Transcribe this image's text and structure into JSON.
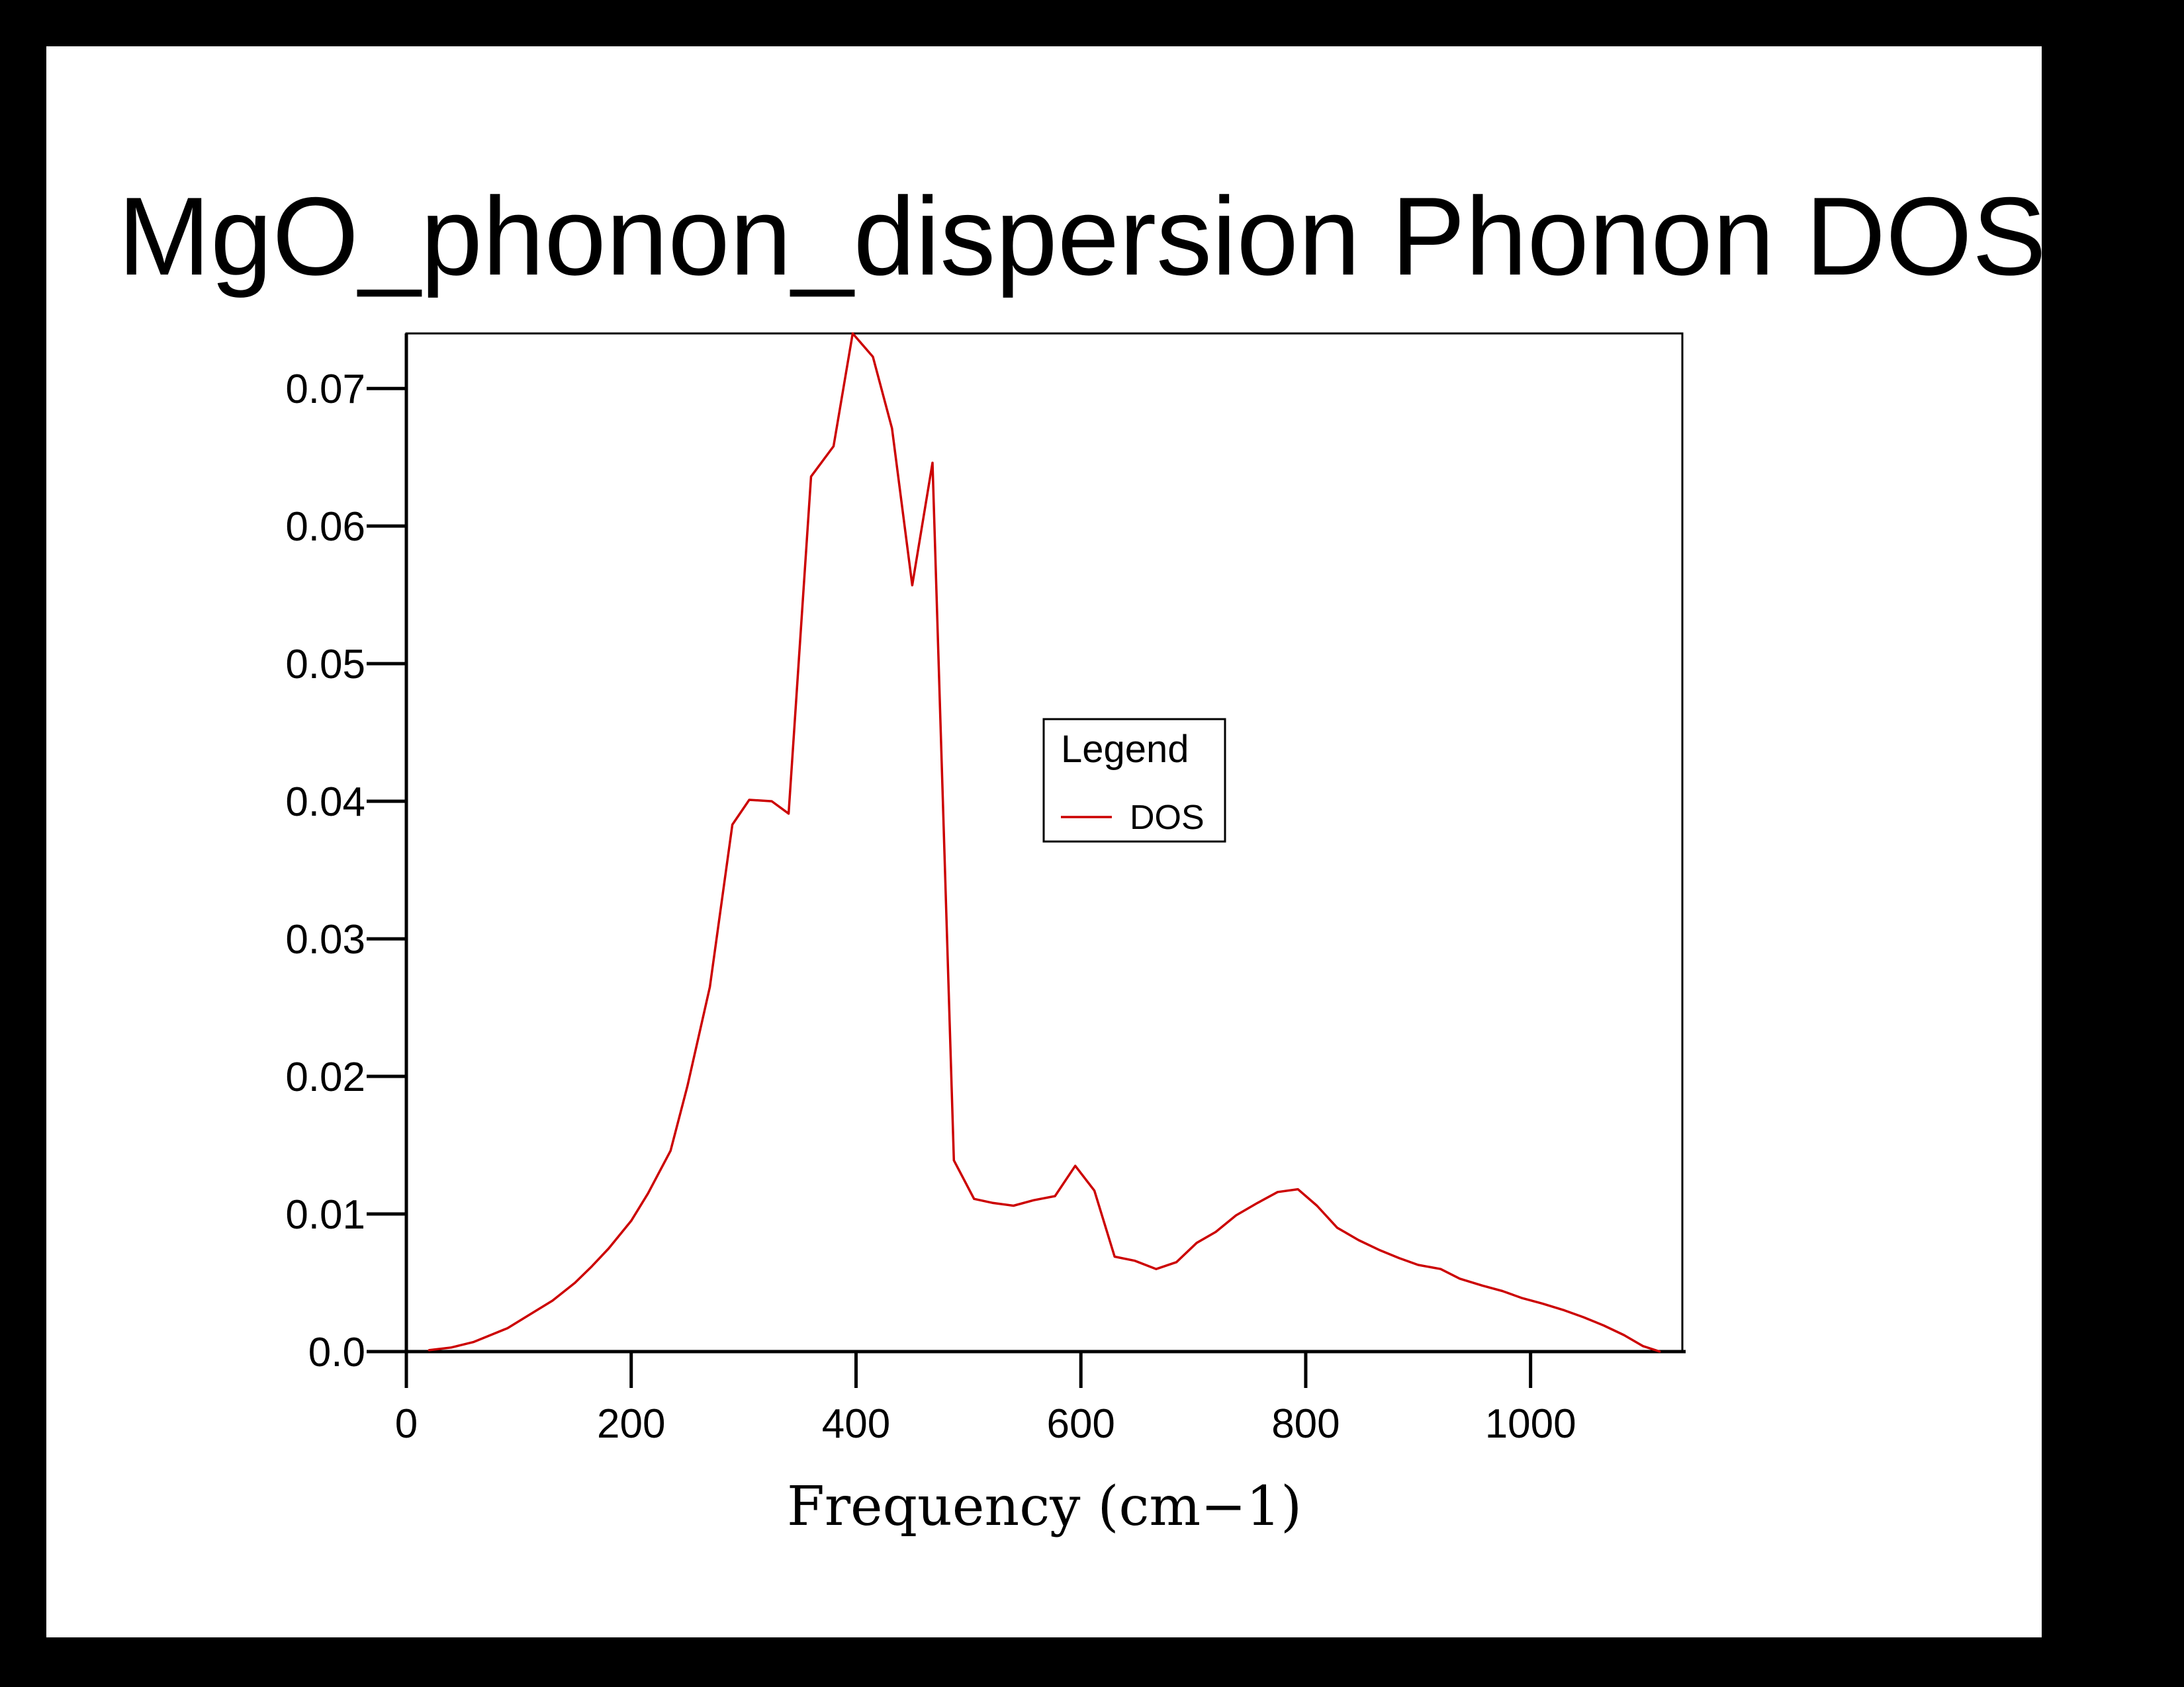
{
  "chart_data": {
    "type": "line",
    "title": "MgO_phonon_dispersion Phonon DOS",
    "xlabel": "Frequency (cm−1)",
    "ylabel": "",
    "xlim": [
      0,
      1135
    ],
    "ylim": [
      0,
      0.074
    ],
    "x_ticks": [
      0,
      200,
      400,
      600,
      800,
      1000
    ],
    "x_tick_labels": [
      "0",
      "200",
      "400",
      "600",
      "800",
      "1000"
    ],
    "y_ticks": [
      0,
      0.01,
      0.02,
      0.03,
      0.04,
      0.05,
      0.06,
      0.07
    ],
    "y_tick_labels": [
      "0.0",
      "0.01",
      "0.02",
      "0.03",
      "0.04",
      "0.05",
      "0.06",
      "0.07"
    ],
    "grid": false,
    "legend": {
      "title": "Legend",
      "placement": "center"
    },
    "series": [
      {
        "name": "DOS",
        "color": "#cc0000",
        "x": [
          20,
          40,
          60,
          75,
          90,
          110,
          130,
          150,
          165,
          180,
          200,
          215,
          235,
          250,
          270,
          290,
          305,
          325,
          340,
          360,
          380,
          397,
          415,
          432,
          450,
          468,
          487,
          505,
          522,
          540,
          558,
          577,
          595,
          612,
          630,
          648,
          667,
          685,
          703,
          720,
          738,
          757,
          775,
          793,
          810,
          828,
          847,
          865,
          883,
          900,
          920,
          937,
          957,
          975,
          992,
          1010,
          1030,
          1047,
          1065,
          1083,
          1100,
          1115
        ],
        "y": [
          0.0001,
          0.0003,
          0.0007,
          0.0012,
          0.0017,
          0.0027,
          0.0037,
          0.005,
          0.0062,
          0.0075,
          0.0095,
          0.0115,
          0.0146,
          0.0193,
          0.0265,
          0.0383,
          0.0401,
          0.04,
          0.0391,
          0.0636,
          0.0658,
          0.074,
          0.0723,
          0.0671,
          0.0557,
          0.0646,
          0.0139,
          0.0111,
          0.0108,
          0.0106,
          0.011,
          0.0113,
          0.0135,
          0.0117,
          0.0069,
          0.0066,
          0.006,
          0.0065,
          0.0079,
          0.0087,
          0.0099,
          0.0108,
          0.0116,
          0.0118,
          0.0106,
          0.009,
          0.0081,
          0.0074,
          0.0068,
          0.0063,
          0.006,
          0.0053,
          0.0048,
          0.0044,
          0.0039,
          0.0035,
          0.003,
          0.0025,
          0.0019,
          0.0012,
          0.0004,
          0.0
        ]
      }
    ]
  }
}
